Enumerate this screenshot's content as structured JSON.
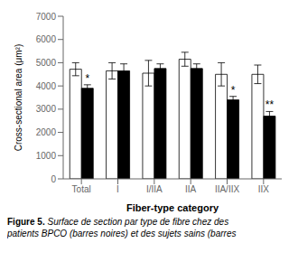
{
  "chart_data": {
    "type": "bar",
    "xlabel": "Fiber-type category",
    "ylabel": "Cross-sectional area (μm²)",
    "categories": [
      "Total",
      "I",
      "I/IIA",
      "IIA",
      "IIA/IIX",
      "IIX"
    ],
    "series": [
      {
        "color": "#ffffff",
        "values": [
          4720,
          4650,
          4550,
          5150,
          4500,
          4500
        ],
        "errors": [
          280,
          350,
          550,
          300,
          500,
          400
        ]
      },
      {
        "color": "#000000",
        "values": [
          3900,
          4650,
          4750,
          4750,
          3400,
          2700
        ],
        "errors": [
          150,
          300,
          200,
          200,
          150,
          200
        ],
        "annotations": [
          "*",
          null,
          null,
          null,
          "*",
          "**"
        ]
      }
    ],
    "ylim": [
      0,
      7000
    ],
    "yticks": [
      0,
      1000,
      2000,
      3000,
      4000,
      5000,
      6000,
      7000
    ],
    "grid": false,
    "caption": "Figure 5.",
    "caption_text": " Surface de section par type de fibre chez des\npatients BPCO (barres noires) et des sujets sains (barres"
  }
}
